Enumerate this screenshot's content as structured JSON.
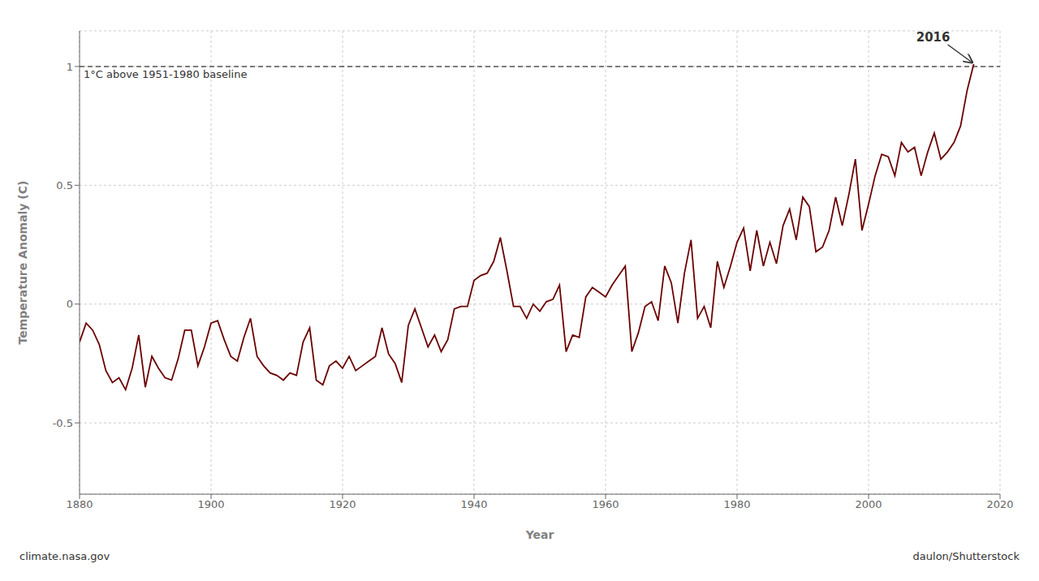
{
  "chart_data": {
    "type": "line",
    "xlabel": "Year",
    "ylabel": "Temperature Anomaly (C)",
    "xlim": [
      1880,
      2020
    ],
    "ylim": [
      -0.8,
      1.15
    ],
    "xticks": [
      1880,
      1900,
      1920,
      1940,
      1960,
      1980,
      2000,
      2020
    ],
    "yticks": [
      -0.5,
      0.0,
      0.5,
      1.0
    ],
    "grid": true,
    "color": "#6B0000",
    "baseline": {
      "y": 1.0,
      "label": "1°C above 1951-1980 baseline"
    },
    "annotations": [
      {
        "text": "2016",
        "x": 2016,
        "y": 1.01
      }
    ],
    "credits": [
      "climate.nasa.gov",
      "daulon/Shutterstock"
    ],
    "x": [
      1880,
      1881,
      1882,
      1883,
      1884,
      1885,
      1886,
      1887,
      1888,
      1889,
      1890,
      1891,
      1892,
      1893,
      1894,
      1895,
      1896,
      1897,
      1898,
      1899,
      1900,
      1901,
      1902,
      1903,
      1904,
      1905,
      1906,
      1907,
      1908,
      1909,
      1910,
      1911,
      1912,
      1913,
      1914,
      1915,
      1916,
      1917,
      1918,
      1919,
      1920,
      1921,
      1922,
      1923,
      1924,
      1925,
      1926,
      1927,
      1928,
      1929,
      1930,
      1931,
      1932,
      1933,
      1934,
      1935,
      1936,
      1937,
      1938,
      1939,
      1940,
      1941,
      1942,
      1943,
      1944,
      1945,
      1946,
      1947,
      1948,
      1949,
      1950,
      1951,
      1952,
      1953,
      1954,
      1955,
      1956,
      1957,
      1958,
      1959,
      1960,
      1961,
      1962,
      1963,
      1964,
      1965,
      1966,
      1967,
      1968,
      1969,
      1970,
      1971,
      1972,
      1973,
      1974,
      1975,
      1976,
      1977,
      1978,
      1979,
      1980,
      1981,
      1982,
      1983,
      1984,
      1985,
      1986,
      1987,
      1988,
      1989,
      1990,
      1991,
      1992,
      1993,
      1994,
      1995,
      1996,
      1997,
      1998,
      1999,
      2000,
      2001,
      2002,
      2003,
      2004,
      2005,
      2006,
      2007,
      2008,
      2009,
      2010,
      2011,
      2012,
      2013,
      2014,
      2015,
      2016
    ],
    "values": [
      -0.16,
      -0.08,
      -0.11,
      -0.17,
      -0.28,
      -0.33,
      -0.31,
      -0.36,
      -0.27,
      -0.13,
      -0.35,
      -0.22,
      -0.27,
      -0.31,
      -0.32,
      -0.23,
      -0.11,
      -0.11,
      -0.26,
      -0.18,
      -0.08,
      -0.07,
      -0.15,
      -0.22,
      -0.24,
      -0.14,
      -0.06,
      -0.22,
      -0.26,
      -0.29,
      -0.3,
      -0.32,
      -0.29,
      -0.3,
      -0.16,
      -0.1,
      -0.32,
      -0.34,
      -0.26,
      -0.24,
      -0.27,
      -0.22,
      -0.28,
      -0.26,
      -0.24,
      -0.22,
      -0.1,
      -0.21,
      -0.25,
      -0.33,
      -0.09,
      -0.02,
      -0.1,
      -0.18,
      -0.13,
      -0.2,
      -0.15,
      -0.02,
      -0.01,
      -0.01,
      0.1,
      0.12,
      0.13,
      0.18,
      0.28,
      0.14,
      -0.01,
      -0.01,
      -0.06,
      0.0,
      -0.03,
      0.01,
      0.02,
      0.08,
      -0.2,
      -0.13,
      -0.14,
      0.03,
      0.07,
      0.05,
      0.03,
      0.08,
      0.12,
      0.16,
      -0.2,
      -0.12,
      -0.01,
      0.01,
      -0.07,
      0.16,
      0.09,
      -0.08,
      0.13,
      0.27,
      -0.06,
      -0.01,
      -0.1,
      0.18,
      0.07,
      0.16,
      0.26,
      0.32,
      0.14,
      0.31,
      0.16,
      0.26,
      0.17,
      0.33,
      0.4,
      0.27,
      0.45,
      0.41,
      0.22,
      0.24,
      0.31,
      0.45,
      0.33,
      0.46,
      0.61,
      0.31,
      0.42,
      0.54,
      0.63,
      0.62,
      0.54,
      0.68,
      0.64,
      0.66,
      0.54,
      0.64,
      0.72,
      0.61,
      0.64,
      0.68,
      0.75,
      0.9,
      1.01
    ]
  }
}
